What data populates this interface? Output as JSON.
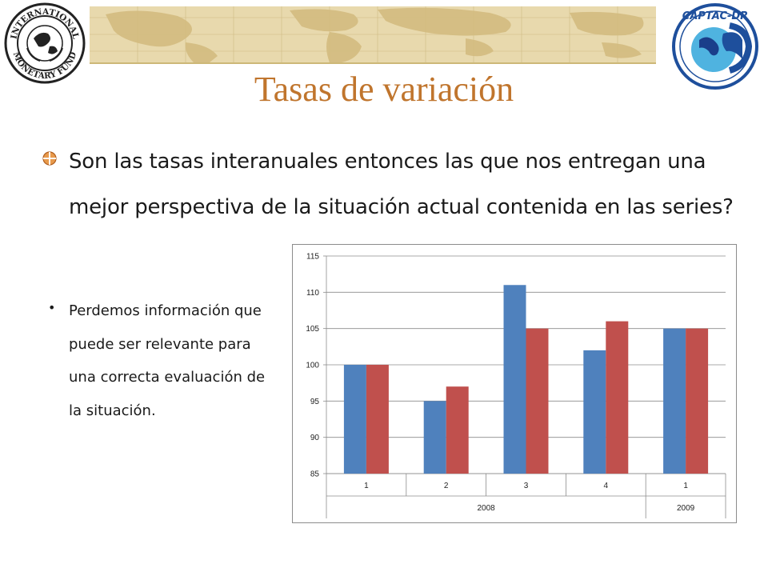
{
  "slide": {
    "title": "Tasas de variación",
    "main_bullet": "Son las tasas interanuales entonces las que nos entregan una mejor perspectiva de la situación actual contenida en las series?",
    "sub_bullet": "Perdemos información que puede ser relevante para una correcta evaluación de la situación."
  },
  "logos": {
    "left": "INTERNATIONAL MONETARY FUND",
    "right": "CAPTAC-DR"
  },
  "colors": {
    "title": "#c0752d",
    "series_1": "#4f81bd",
    "series_2": "#c0504d",
    "header_map": "#e8d9ad"
  },
  "chart_data": {
    "type": "bar",
    "categories": [
      "1",
      "2",
      "3",
      "4",
      "1"
    ],
    "groups": [
      {
        "label": "2008",
        "span": 4
      },
      {
        "label": "2009",
        "span": 1
      }
    ],
    "series": [
      {
        "values": [
          100,
          95,
          111,
          102,
          105
        ],
        "color": "#4f81bd"
      },
      {
        "values": [
          100,
          97,
          105,
          106,
          105
        ],
        "color": "#c0504d"
      }
    ],
    "ylim": [
      85,
      115
    ],
    "yticks": [
      85,
      90,
      95,
      100,
      105,
      110,
      115
    ],
    "grid": true,
    "legend": "none"
  }
}
